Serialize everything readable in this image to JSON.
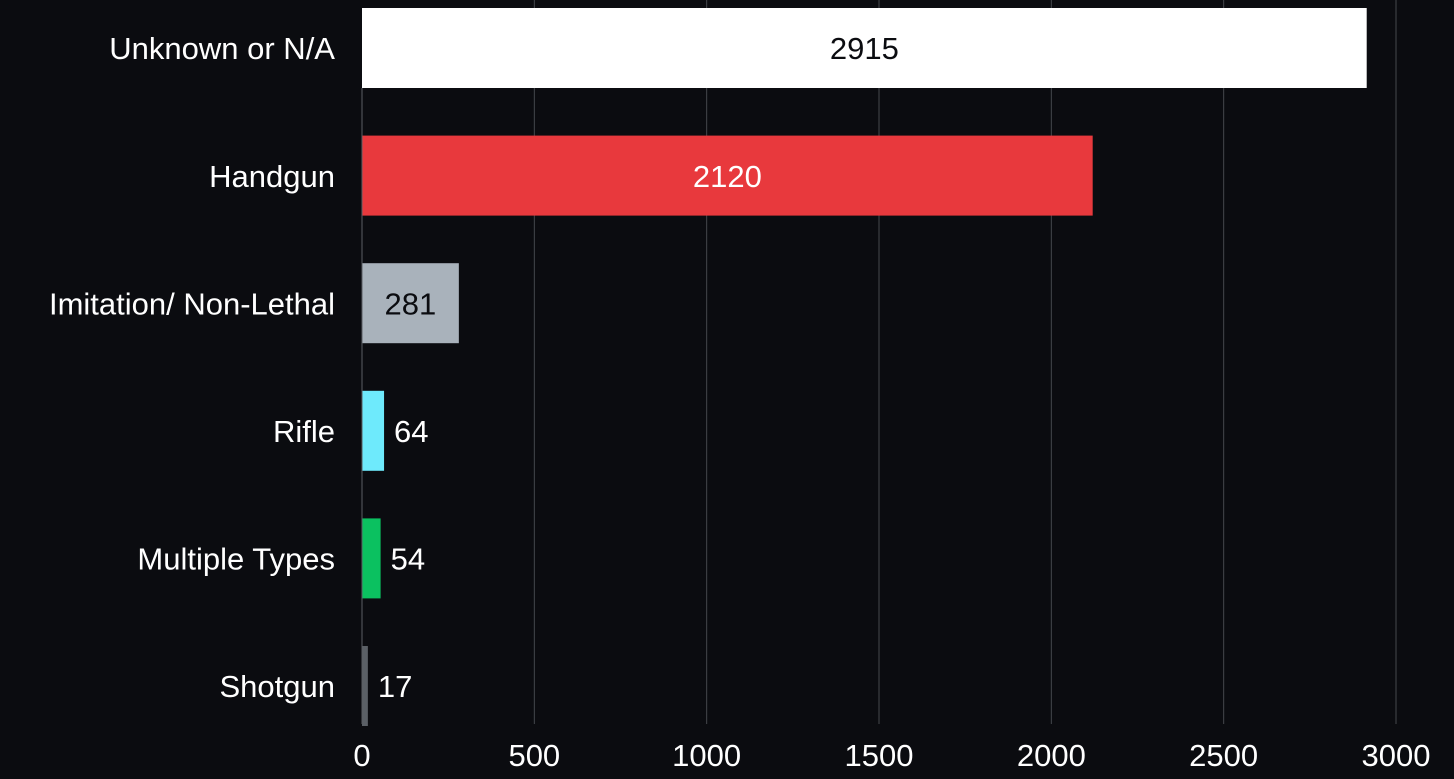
{
  "chart_data": {
    "type": "bar",
    "orientation": "horizontal",
    "categories": [
      "Unknown or N/A",
      "Handgun",
      "Imitation/ Non-Lethal",
      "Rifle",
      "Multiple Types",
      "Shotgun"
    ],
    "values": [
      2915,
      2120,
      281,
      64,
      54,
      17
    ],
    "data_labels": [
      "2915",
      "2120",
      "281",
      "64",
      "54",
      "17"
    ],
    "colors": [
      "#ffffff",
      "#e8393d",
      "#a9b2bb",
      "#6eeafc",
      "#0bc160",
      "#5b6066"
    ],
    "label_colors": [
      "#0b0c10",
      "#ffffff",
      "#0b0c10",
      "#ffffff",
      "#ffffff",
      "#ffffff"
    ],
    "xlim": [
      0,
      3000
    ],
    "x_ticks": [
      0,
      500,
      1000,
      1500,
      2000,
      2500,
      3000
    ],
    "x_tick_labels": [
      "0",
      "500",
      "1000",
      "1500",
      "2000",
      "2500",
      "3000"
    ],
    "grid": "vertical",
    "title": "",
    "xlabel": "",
    "ylabel": "",
    "legend": "none"
  },
  "theme": {
    "background": "#0b0c10",
    "text": "#ffffff",
    "gridline": "#45474c",
    "axisline": "#5b5e63"
  }
}
